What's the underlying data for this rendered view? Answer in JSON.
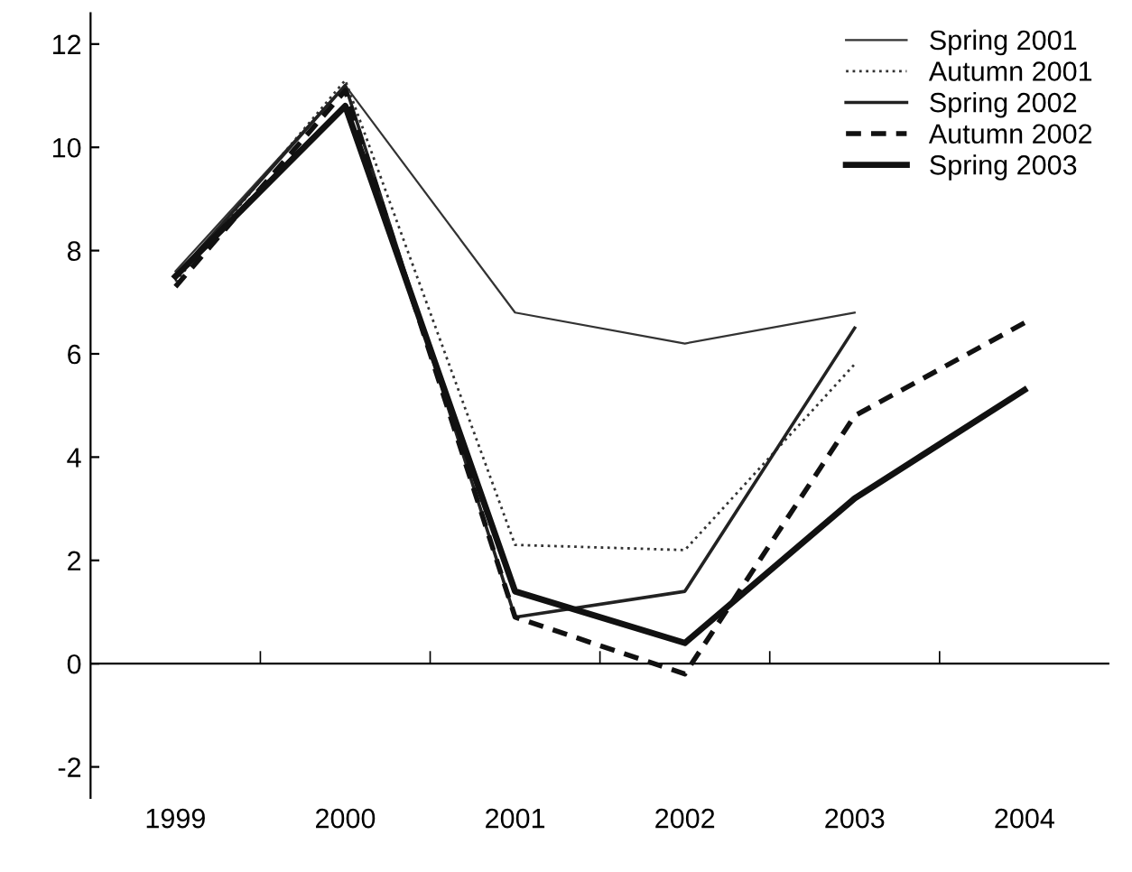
{
  "chart_data": {
    "type": "line",
    "categories": [
      "1999",
      "2000",
      "2001",
      "2002",
      "2003",
      "2004"
    ],
    "series": [
      {
        "name": "Spring 2001",
        "color": "#333333",
        "line_style": "solid",
        "values": [
          7.6,
          11.2,
          6.8,
          6.2,
          6.8,
          null
        ]
      },
      {
        "name": "Autumn 2001",
        "color": "#333333",
        "line_style": "dotted",
        "values": [
          7.4,
          11.3,
          2.3,
          2.2,
          5.8,
          null
        ]
      },
      {
        "name": "Spring 2002",
        "color": "#222222",
        "line_style": "solid",
        "values": [
          7.5,
          11.2,
          0.9,
          1.4,
          6.5,
          null
        ]
      },
      {
        "name": "Autumn 2002",
        "color": "#111111",
        "line_style": "dashed",
        "values": [
          7.3,
          11.1,
          0.9,
          -0.2,
          4.8,
          6.6
        ]
      },
      {
        "name": "Spring 2003",
        "color": "#111111",
        "line_style": "solid",
        "values": [
          7.5,
          10.8,
          1.4,
          0.4,
          3.2,
          5.3
        ]
      }
    ],
    "ylim": [
      -2.6,
      12.6
    ],
    "yticks": [
      -2,
      0,
      2,
      4,
      6,
      8,
      10,
      12
    ],
    "grid": false,
    "ref_lines": [
      {
        "axis": "y",
        "value": 0,
        "color": "#000000"
      }
    ],
    "legend": "top right",
    "marker": "none"
  }
}
